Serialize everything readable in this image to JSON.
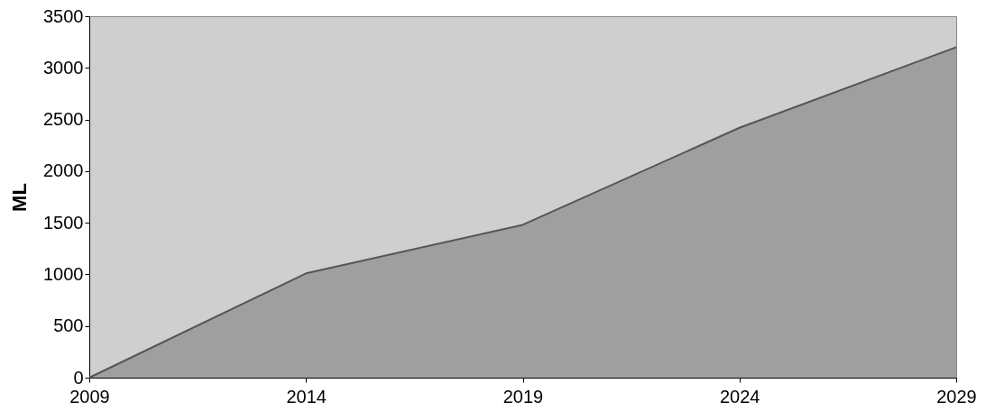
{
  "chart_data": {
    "type": "area",
    "ylabel": "ML",
    "x": [
      2009,
      2014,
      2019,
      2024,
      2029
    ],
    "series": [
      {
        "color": "#8a8a8a",
        "values": [
          0,
          1010,
          1480,
          2420,
          3200
        ]
      }
    ],
    "xlim": [
      2009,
      2029
    ],
    "xticks": [
      2009,
      2014,
      2019,
      2024,
      2029
    ],
    "ylim": [
      0,
      3500
    ],
    "yticks": [
      0,
      500,
      1000,
      1500,
      2000,
      2500,
      3000,
      3500
    ],
    "grid": false
  }
}
